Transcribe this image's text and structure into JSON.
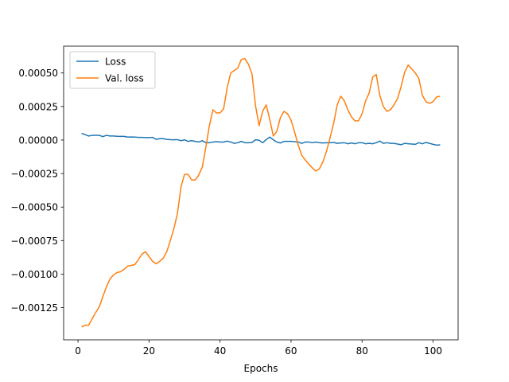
{
  "chart_data": {
    "type": "line",
    "xlabel": "Epochs",
    "x": [
      1,
      2,
      3,
      4,
      5,
      6,
      7,
      8,
      9,
      10,
      11,
      12,
      13,
      14,
      15,
      16,
      17,
      18,
      19,
      20,
      21,
      22,
      23,
      24,
      25,
      26,
      27,
      28,
      29,
      30,
      31,
      32,
      33,
      34,
      35,
      36,
      37,
      38,
      39,
      40,
      41,
      42,
      43,
      44,
      45,
      46,
      47,
      48,
      49,
      50,
      51,
      52,
      53,
      54,
      55,
      56,
      57,
      58,
      59,
      60,
      61,
      62,
      63,
      64,
      65,
      66,
      67,
      68,
      69,
      70,
      71,
      72,
      73,
      74,
      75,
      76,
      77,
      78,
      79,
      80,
      81,
      82,
      83,
      84,
      85,
      86,
      87,
      88,
      89,
      90,
      91,
      92,
      93,
      94,
      95,
      96,
      97,
      98,
      99,
      100,
      101,
      102
    ],
    "series": [
      {
        "name": "Loss",
        "color": "#1f77b4",
        "values": [
          5e-05,
          4e-05,
          3e-05,
          3.5e-05,
          3.5e-05,
          3.5e-05,
          2.5e-05,
          3.5e-05,
          3e-05,
          3e-05,
          2.8e-05,
          2.7e-05,
          2.7e-05,
          2.2e-05,
          2.3e-05,
          2.2e-05,
          2e-05,
          2e-05,
          1.8e-05,
          1.8e-05,
          2e-05,
          5e-06,
          1e-05,
          1e-05,
          5e-06,
          3e-06,
          2e-06,
          3e-06,
          -5e-06,
          2e-06,
          -1e-05,
          -5e-06,
          -1e-05,
          -1.5e-05,
          -5e-06,
          -2e-05,
          -2e-05,
          -1.5e-05,
          -1.2e-05,
          -1.5e-05,
          -1.5e-05,
          -8e-06,
          -1.5e-05,
          -2.5e-05,
          -2e-05,
          -1e-05,
          -2e-05,
          -2e-05,
          -1.8e-05,
          2e-06,
          -2e-06,
          -2e-05,
          3e-06,
          2.2e-05,
          2e-06,
          -1.5e-05,
          -2.2e-05,
          -1e-05,
          -1e-05,
          -1e-05,
          -1.2e-05,
          -1.5e-05,
          -2.5e-05,
          -1.5e-05,
          -1.5e-05,
          -2e-05,
          -1.5e-05,
          -2e-05,
          -2.2e-05,
          -2e-05,
          -2e-05,
          -1.8e-05,
          -2.5e-05,
          -2.2e-05,
          -2e-05,
          -2.8e-05,
          -2.2e-05,
          -2.8e-05,
          -2e-05,
          -2e-05,
          -2.8e-05,
          -2.5e-05,
          -2.8e-05,
          -2e-05,
          -8e-06,
          -2.5e-05,
          -2e-05,
          -2.5e-05,
          -2.5e-05,
          -3e-05,
          -3.5e-05,
          -2.5e-05,
          -2.8e-05,
          -3e-05,
          -3.2e-05,
          -2e-05,
          -2.8e-05,
          -1.8e-05,
          -2.5e-05,
          -3.2e-05,
          -3.8e-05,
          -3.6e-05
        ]
      },
      {
        "name": "Val. loss",
        "color": "#ff7f0e",
        "values": [
          -0.001393,
          -0.001381,
          -0.001381,
          -0.001333,
          -0.001286,
          -0.001244,
          -0.001167,
          -0.001095,
          -0.001036,
          -0.001006,
          -0.000988,
          -0.000982,
          -0.000964,
          -0.00094,
          -0.000935,
          -0.000929,
          -0.000893,
          -0.000851,
          -0.000833,
          -0.000869,
          -0.000905,
          -0.000923,
          -0.000905,
          -0.000881,
          -0.000833,
          -0.00075,
          -0.000661,
          -0.000548,
          -0.000351,
          -0.000256,
          -0.000256,
          -0.000298,
          -0.000298,
          -0.000262,
          -0.000202,
          -5.4e-05,
          0.000107,
          0.000226,
          0.000202,
          0.000202,
          0.000232,
          0.000387,
          0.0005,
          0.000518,
          0.000536,
          0.000601,
          0.000607,
          0.000565,
          0.000494,
          0.000256,
          0.000107,
          0.000214,
          0.000262,
          0.000155,
          3e-05,
          6.5e-05,
          0.000167,
          0.000214,
          0.000196,
          0.000149,
          6e-05,
          -3.6e-05,
          -0.000113,
          -0.000149,
          -0.000179,
          -0.000208,
          -0.000232,
          -0.000214,
          -0.000161,
          -8.3e-05,
          1.8e-05,
          0.000125,
          0.000262,
          0.000327,
          0.000292,
          0.000226,
          0.000173,
          0.000143,
          0.000143,
          0.000196,
          0.000292,
          0.000351,
          0.00047,
          0.000488,
          0.000333,
          0.00025,
          0.000214,
          0.000226,
          0.000262,
          0.000309,
          0.000399,
          0.000506,
          0.00056,
          0.00053,
          0.0005,
          0.000458,
          0.000333,
          0.000286,
          0.000274,
          0.000286,
          0.000321,
          0.000327
        ]
      }
    ],
    "xlim": [
      -4.05,
      107.05
    ],
    "xticks": [
      0,
      20,
      40,
      60,
      80,
      100
    ],
    "ylim": [
      -0.00149,
      0.0007
    ],
    "yticks": [
      {
        "value": -0.00125,
        "label": "−0.00125"
      },
      {
        "value": -0.001,
        "label": "−0.00100"
      },
      {
        "value": -0.00075,
        "label": "−0.00075"
      },
      {
        "value": -0.0005,
        "label": "−0.00050"
      },
      {
        "value": -0.00025,
        "label": "−0.00025"
      },
      {
        "value": 0,
        "label": "0.00000"
      },
      {
        "value": 0.00025,
        "label": "0.00025"
      },
      {
        "value": 0.0005,
        "label": "0.00050"
      }
    ],
    "legend": "upper left"
  }
}
